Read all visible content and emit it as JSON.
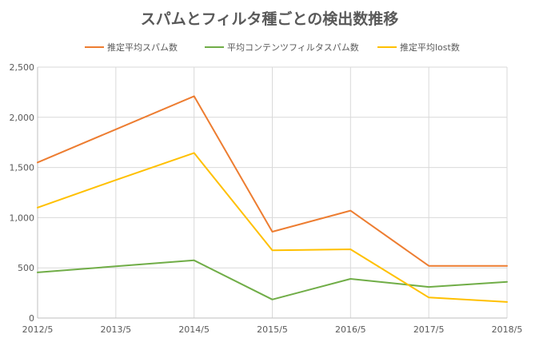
{
  "chart_data": {
    "type": "line",
    "title": "スパムとフィルタ種ごとの検出数推移",
    "x": [
      "2012/5",
      "2013/5",
      "2014/5",
      "2015/5",
      "2016/5",
      "2017/5",
      "2018/5"
    ],
    "y_ticks": [
      "0",
      "500",
      "1,000",
      "1,500",
      "2,000",
      "2,500"
    ],
    "ylim": [
      0,
      2500
    ],
    "grid": true,
    "legend_position": "top",
    "series": [
      {
        "name": "推定平均スパム数",
        "color": "#ED7D31",
        "values": [
          1550,
          1880,
          2210,
          860,
          1070,
          520,
          520
        ]
      },
      {
        "name": "平均コンテンツフィルタスパム数",
        "color": "#70AD47",
        "values": [
          455,
          515,
          575,
          185,
          390,
          310,
          360
        ]
      },
      {
        "name": "推定平均lost数",
        "color": "#FFC000",
        "values": [
          1100,
          1375,
          1645,
          675,
          685,
          205,
          160
        ]
      }
    ]
  }
}
